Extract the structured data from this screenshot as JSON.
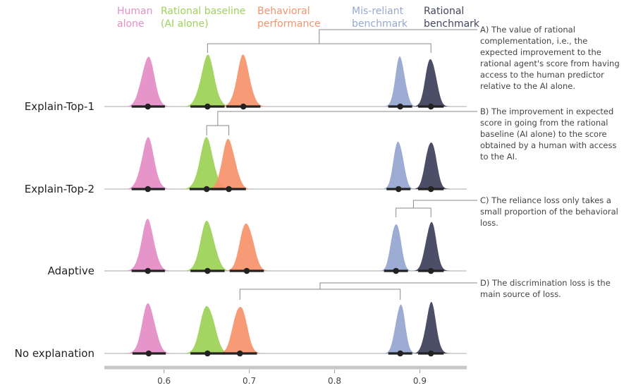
{
  "chart_data": {
    "type": "density",
    "xlim": [
      0.53,
      0.955
    ],
    "x_ticks": [
      0.6,
      0.7,
      0.8,
      0.9
    ],
    "grid": false,
    "legend": "top",
    "rows": [
      "Explain-Top-1",
      "Explain-Top-2",
      "Adaptive",
      "No explanation"
    ],
    "series": [
      {
        "name": "Human alone",
        "color": "#e58fc8"
      },
      {
        "name": "Rational baseline (AI alone)",
        "color": "#9fd35a"
      },
      {
        "name": "Behavioral performance",
        "color": "#f6936b"
      },
      {
        "name": "Mis-reliant benchmark",
        "color": "#97a8d0"
      },
      {
        "name": "Rational benchmark",
        "color": "#424560"
      }
    ],
    "legend_labels": [
      [
        "Human",
        "alone"
      ],
      [
        "Rational baseline",
        "(AI alone)"
      ],
      [
        "Behavioral",
        "performance"
      ],
      [
        "Mis-reliant",
        "benchmark"
      ],
      [
        "Rational",
        "benchmark"
      ]
    ],
    "points": [
      {
        "means": [
          0.581,
          0.651,
          0.693,
          0.877,
          0.913
        ],
        "ci_low": [
          0.562,
          0.631,
          0.673,
          0.863,
          0.898
        ],
        "ci_high": [
          0.601,
          0.671,
          0.713,
          0.891,
          0.928
        ],
        "sd": [
          0.0075,
          0.008,
          0.0075,
          0.0055,
          0.006
        ]
      },
      {
        "means": [
          0.581,
          0.65,
          0.676,
          0.875,
          0.913
        ],
        "ci_low": [
          0.562,
          0.63,
          0.656,
          0.861,
          0.898
        ],
        "ci_high": [
          0.601,
          0.67,
          0.696,
          0.889,
          0.928
        ],
        "sd": [
          0.0075,
          0.008,
          0.0075,
          0.0055,
          0.006
        ]
      },
      {
        "means": [
          0.581,
          0.651,
          0.697,
          0.872,
          0.913
        ],
        "ci_low": [
          0.562,
          0.631,
          0.677,
          0.858,
          0.898
        ],
        "ci_high": [
          0.601,
          0.671,
          0.717,
          0.886,
          0.928
        ],
        "sd": [
          0.0075,
          0.008,
          0.0075,
          0.0055,
          0.006
        ]
      },
      {
        "means": [
          0.582,
          0.651,
          0.689,
          0.877,
          0.913
        ],
        "ci_low": [
          0.563,
          0.631,
          0.669,
          0.863,
          0.898
        ],
        "ci_high": [
          0.602,
          0.671,
          0.709,
          0.891,
          0.928
        ],
        "sd": [
          0.0075,
          0.008,
          0.0075,
          0.0055,
          0.006
        ]
      }
    ],
    "annotations": [
      {
        "label": "A",
        "row": 0,
        "span": [
          0.651,
          0.913
        ],
        "lines": [
          "A) The value of rational",
          "complementation, i.e., the",
          "expected improvement to the",
          "rational agent's score from having",
          "access to the human predictor",
          "relative to the AI alone."
        ]
      },
      {
        "label": "B",
        "row": 1,
        "span": [
          0.65,
          0.676
        ],
        "lines": [
          "B) The improvement in expected",
          "score in going from the rational",
          "baseline (AI alone) to the score",
          "obtained by a human with access",
          "to the AI."
        ]
      },
      {
        "label": "C",
        "row": 2,
        "span": [
          0.872,
          0.913
        ],
        "lines": [
          "C) The reliance loss only takes a",
          "small proportion of the behavioral",
          "loss."
        ]
      },
      {
        "label": "D",
        "row": 3,
        "span": [
          0.689,
          0.877
        ],
        "lines": [
          "D) The discrimination loss is the",
          "main source of loss."
        ]
      }
    ]
  }
}
